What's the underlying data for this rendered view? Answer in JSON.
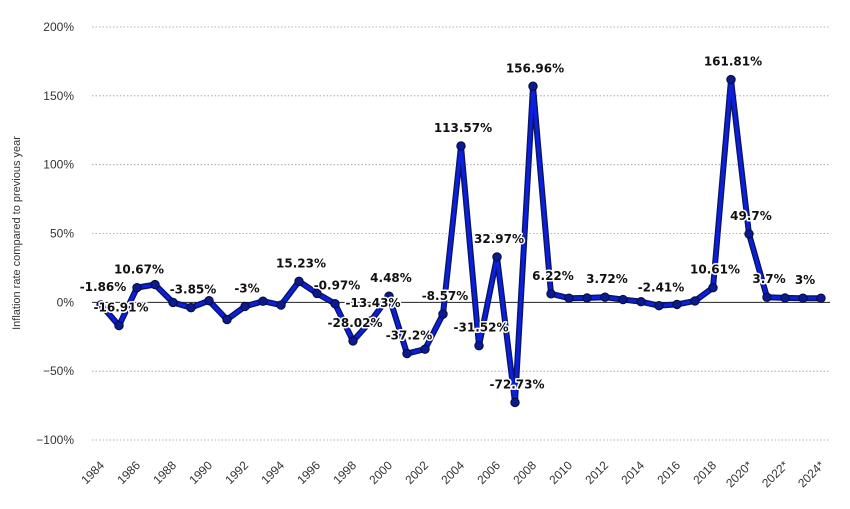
{
  "chart_data": {
    "type": "line",
    "title": "",
    "xlabel": "",
    "ylabel": "Inflation rate compared to previous year",
    "x": [
      "1984",
      "1985",
      "1986",
      "1987",
      "1988",
      "1989",
      "1990",
      "1991",
      "1992",
      "1993",
      "1994",
      "1995",
      "1996",
      "1997",
      "1998",
      "1999",
      "2000",
      "2001",
      "2002",
      "2003",
      "2004",
      "2005",
      "2006",
      "2007",
      "2008",
      "2009",
      "2010",
      "2011",
      "2012",
      "2013",
      "2014",
      "2015",
      "2016",
      "2017",
      "2018",
      "2019",
      "2020*",
      "2021*",
      "2022*",
      "2023*",
      "2024*"
    ],
    "x_tick_labels": [
      "1984",
      "1986",
      "1988",
      "1990",
      "1992",
      "1994",
      "1996",
      "1998",
      "2000",
      "2002",
      "2004",
      "2006",
      "2008",
      "2010",
      "2012",
      "2014",
      "2016",
      "2018",
      "2020*",
      "2022*",
      "2024*"
    ],
    "series": [
      {
        "values": [
          -1.86,
          -16.91,
          10.67,
          12.88,
          -0.09,
          -3.85,
          1.2,
          -12.5,
          -3.0,
          0.8,
          -2.0,
          15.23,
          6.5,
          -0.97,
          -28.02,
          -13.43,
          4.48,
          -37.2,
          -34.0,
          -8.57,
          113.57,
          -31.52,
          32.97,
          -72.73,
          156.96,
          6.22,
          3.0,
          3.2,
          3.72,
          2.0,
          0.5,
          -2.41,
          -1.5,
          1.0,
          10.61,
          161.81,
          49.7,
          3.7,
          3.2,
          3.0,
          3.0
        ],
        "color": "#0a1fe0"
      }
    ],
    "data_labels": [
      {
        "x": "1984",
        "text": "-1.86%"
      },
      {
        "x": "1985",
        "text": "-16.91%"
      },
      {
        "x": "1986",
        "text": "10.67%"
      },
      {
        "x": "1989",
        "text": "-3.85%"
      },
      {
        "x": "1992",
        "text": "-3%"
      },
      {
        "x": "1995",
        "text": "15.23%"
      },
      {
        "x": "1997",
        "text": "-0.97%"
      },
      {
        "x": "1998",
        "text": "-28.02%"
      },
      {
        "x": "1999",
        "text": "-13.43%"
      },
      {
        "x": "2000",
        "text": "4.48%"
      },
      {
        "x": "2001",
        "text": "-37.2%"
      },
      {
        "x": "2003",
        "text": "-8.57%"
      },
      {
        "x": "2004",
        "text": "113.57%"
      },
      {
        "x": "2005",
        "text": "-31.52%"
      },
      {
        "x": "2006",
        "text": "32.97%"
      },
      {
        "x": "2007",
        "text": "-72.73%"
      },
      {
        "x": "2008",
        "text": "156.96%"
      },
      {
        "x": "2009",
        "text": "6.22%"
      },
      {
        "x": "2012",
        "text": "3.72%"
      },
      {
        "x": "2015",
        "text": "-2.41%"
      },
      {
        "x": "2018",
        "text": "10.61%"
      },
      {
        "x": "2019",
        "text": "161.81%"
      },
      {
        "x": "2020*",
        "text": "49.7%"
      },
      {
        "x": "2021*",
        "text": "3.7%"
      },
      {
        "x": "2023*",
        "text": "3%"
      }
    ],
    "y_ticks": [
      -100,
      -50,
      0,
      50,
      100,
      150,
      200
    ],
    "y_tick_labels": [
      "−100%",
      "−50%",
      "0%",
      "50%",
      "100%",
      "150%",
      "200%"
    ],
    "ylim": [
      -100,
      200
    ],
    "grid": "horizontal-dotted",
    "legend": "none",
    "line_color": "#0a1fe0",
    "outline_color": "#0b1560",
    "marker_color": "#0b1a8c"
  }
}
